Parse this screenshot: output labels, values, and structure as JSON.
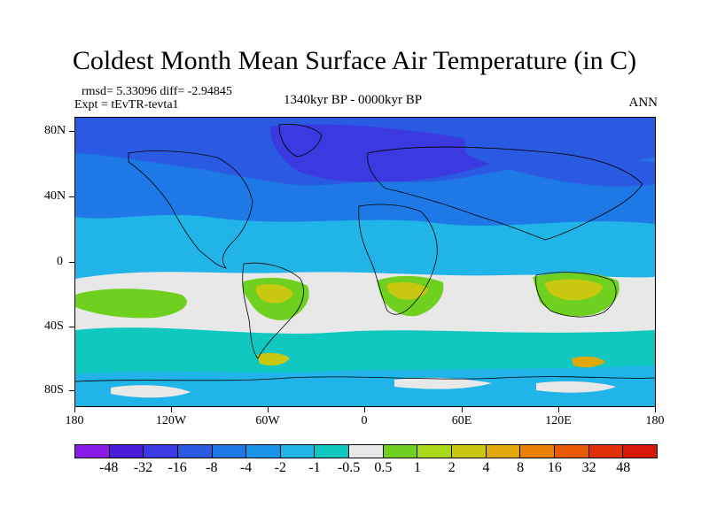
{
  "title": "Coldest Month Mean Surface Air Temperature (in C)",
  "stats_line": "rmsd= 5.33096 diff= -2.94845",
  "experiment_line": "Expt = tEvTR-tevta1",
  "period": "1340kyr BP - 0000kyr BP",
  "season": "ANN",
  "y_axis_labels": [
    "80N",
    "40N",
    "0",
    "40S",
    "80S"
  ],
  "x_axis_labels": [
    "180",
    "120W",
    "60W",
    "0",
    "60E",
    "120E",
    "180"
  ],
  "colorbar": {
    "labels": [
      "-48",
      "-32",
      "-16",
      "-8",
      "-4",
      "-2",
      "-1",
      "-0.5",
      "0.5",
      "1",
      "2",
      "4",
      "8",
      "16",
      "32",
      "48"
    ],
    "colors": [
      "#8a1ce8",
      "#4a1ed8",
      "#3a3ae0",
      "#2a5ae2",
      "#1e78e6",
      "#1a94e8",
      "#20b4e8",
      "#10c8c0",
      "#e8e8e8",
      "#70d020",
      "#a8d818",
      "#c8c810",
      "#e0a808",
      "#e88008",
      "#e85a08",
      "#e03008",
      "#d81808"
    ]
  },
  "map_colors": {
    "ocean_base": "#20b4e8",
    "deep_cold": "#2a5ae2",
    "coldest": "#3a3ae0",
    "mid_cold": "#1e78e6",
    "cyan": "#10c8c0",
    "neutral": "#e8e8e8",
    "warm_green": "#70d020",
    "warm_yellow": "#c8c810",
    "warm_orange": "#e0a808"
  }
}
